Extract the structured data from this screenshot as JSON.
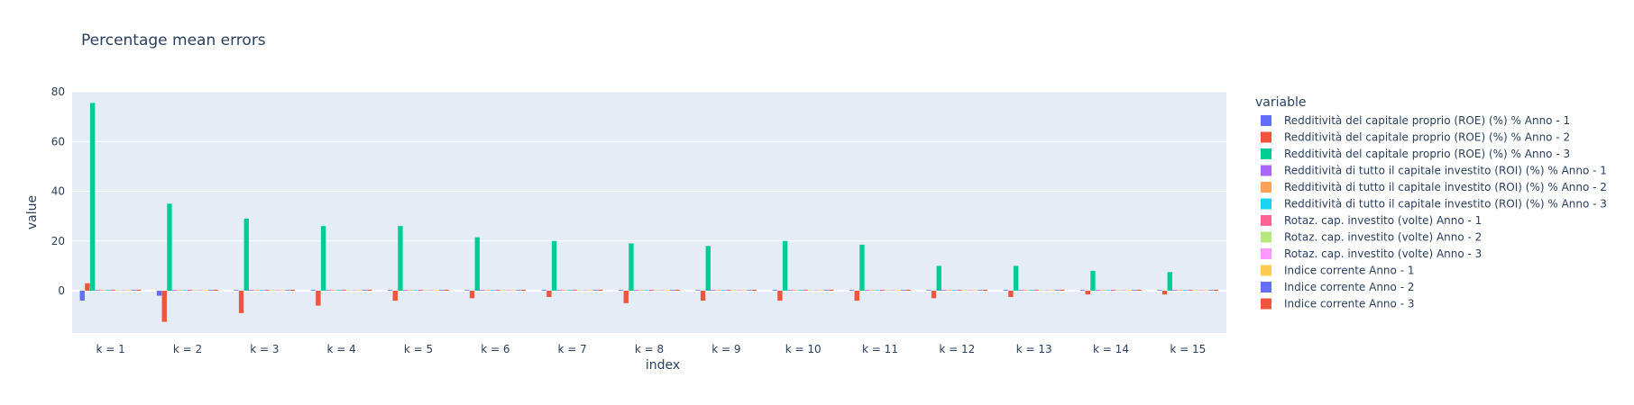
{
  "chart_data": {
    "type": "bar",
    "title": "Percentage mean errors",
    "xlabel": "index",
    "ylabel": "value",
    "ylim": [
      -17,
      80
    ],
    "yticks": [
      0,
      20,
      40,
      60,
      80
    ],
    "grid": true,
    "legend_title": "variable",
    "legend_position": "right",
    "categories": [
      "k = 1",
      "k = 2",
      "k = 3",
      "k = 4",
      "k = 5",
      "k = 6",
      "k = 7",
      "k = 8",
      "k = 9",
      "k = 10",
      "k = 11",
      "k = 12",
      "k = 13",
      "k = 14",
      "k = 15"
    ],
    "series": [
      {
        "name": "Redditività del capitale proprio (ROE) (%) % Anno - 1",
        "color": "#636efa",
        "values": [
          -4,
          -2,
          0.3,
          0.3,
          0.3,
          0.3,
          0.3,
          0.3,
          0.3,
          0.3,
          0.3,
          0.3,
          0.3,
          0.3,
          0.3
        ]
      },
      {
        "name": "Redditività del capitale proprio (ROE) (%) % Anno - 2",
        "color": "#EF553B",
        "values": [
          3,
          -12.5,
          -9,
          -6,
          -4,
          -3,
          -2.5,
          -5,
          -4,
          -4,
          -4,
          -3,
          -2.5,
          -1.5,
          -1.5
        ]
      },
      {
        "name": "Redditività del capitale proprio (ROE) (%) % Anno - 3",
        "color": "#00cc96",
        "values": [
          75.5,
          35,
          29,
          26,
          26,
          21.5,
          20,
          19,
          18,
          20,
          18.5,
          10,
          10,
          8,
          7.5
        ]
      },
      {
        "name": "Redditività di tutto il capitale investito (ROI) (%) % Anno - 1",
        "color": "#ab63fa",
        "values": [
          0.3,
          0.3,
          0.3,
          0.3,
          0.3,
          0.3,
          0.3,
          0.3,
          0.3,
          0.3,
          0.3,
          0.3,
          0.3,
          0.3,
          0.3
        ]
      },
      {
        "name": "Redditività di tutto il capitale investito (ROI) (%) % Anno - 2",
        "color": "#FFA15A",
        "values": [
          0.3,
          0.3,
          0.3,
          0.3,
          0.3,
          0.3,
          0.3,
          0.3,
          0.3,
          0.3,
          0.3,
          0.3,
          0.3,
          0.3,
          0.3
        ]
      },
      {
        "name": "Redditività di tutto il capitale investito (ROI) (%) % Anno - 3",
        "color": "#19d3f3",
        "values": [
          0.3,
          0.3,
          0.3,
          0.3,
          0.3,
          0.3,
          0.3,
          0.3,
          0.3,
          0.3,
          0.3,
          0.3,
          0.3,
          0.3,
          0.3
        ]
      },
      {
        "name": "Rotaz. cap. investito (volte) Anno - 1",
        "color": "#FF6692",
        "values": [
          0.4,
          0.4,
          0.4,
          0.4,
          0.4,
          0.4,
          0.4,
          0.4,
          0.4,
          0.4,
          0.4,
          0.4,
          0.4,
          0.4,
          0.4
        ]
      },
      {
        "name": "Rotaz. cap. investito (volte) Anno - 2",
        "color": "#B6E880",
        "values": [
          0.3,
          0.3,
          0.3,
          0.3,
          0.3,
          0.3,
          0.3,
          0.3,
          0.3,
          0.3,
          0.3,
          0.3,
          0.3,
          0.3,
          0.3
        ]
      },
      {
        "name": "Rotaz. cap. investito (volte) Anno - 3",
        "color": "#FF97FF",
        "values": [
          0.3,
          0.3,
          0.3,
          0.3,
          0.3,
          0.3,
          0.3,
          0.3,
          0.3,
          0.3,
          0.3,
          0.3,
          0.3,
          0.3,
          0.3
        ]
      },
      {
        "name": "Indice corrente Anno - 1",
        "color": "#FECB52",
        "values": [
          0.3,
          0.3,
          0.3,
          0.3,
          0.3,
          0.3,
          0.3,
          0.3,
          0.3,
          0.3,
          0.3,
          0.3,
          0.3,
          0.3,
          0.3
        ]
      },
      {
        "name": "Indice corrente Anno - 2",
        "color": "#636efa",
        "values": [
          0.3,
          0.3,
          0.3,
          0.3,
          0.3,
          0.3,
          0.3,
          0.3,
          0.3,
          0.3,
          0.3,
          0.3,
          0.3,
          0.3,
          0.3
        ]
      },
      {
        "name": "Indice corrente Anno - 3",
        "color": "#EF553B",
        "values": [
          0.4,
          0.4,
          0.4,
          0.4,
          0.4,
          0.4,
          0.4,
          0.4,
          0.4,
          0.4,
          0.4,
          0.4,
          0.4,
          0.4,
          0.4
        ]
      }
    ]
  },
  "colors": {
    "plot_background": "#e5ecf6",
    "grid": "#ffffff",
    "text": "#2a3f5f"
  }
}
